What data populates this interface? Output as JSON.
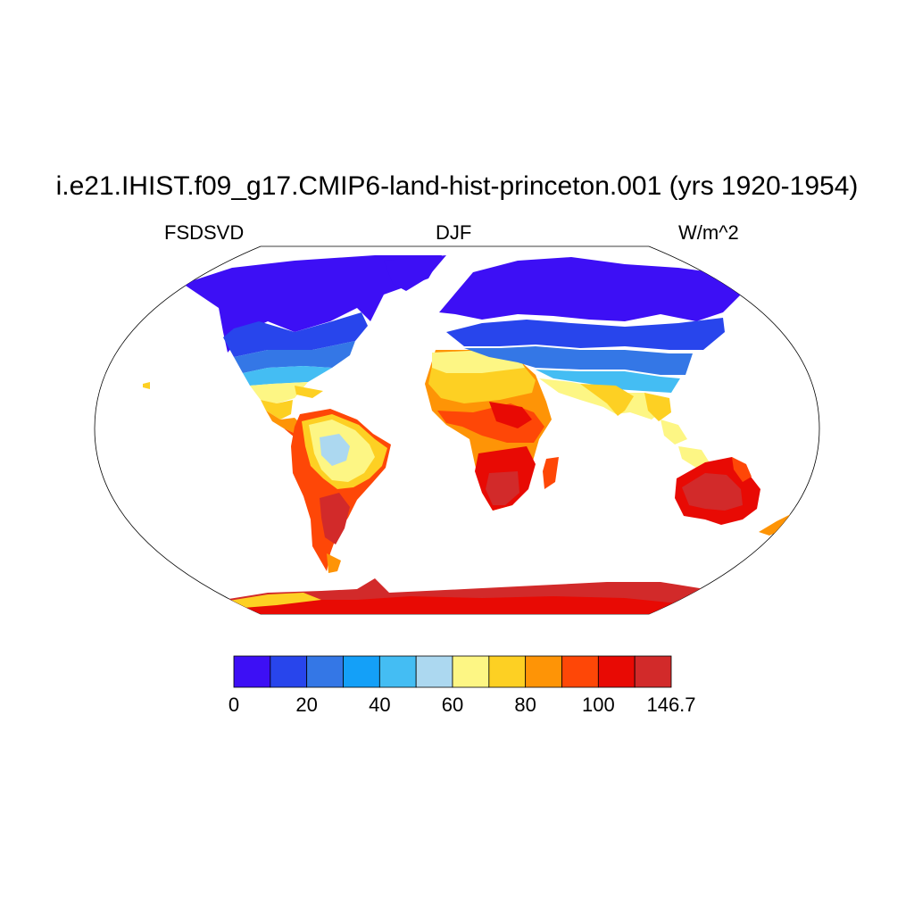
{
  "title": "i.e21.IHIST.f09_g17.CMIP6-land-hist-princeton.001 (yrs 1920-1954)",
  "subtitle_left": "FSDSVD",
  "subtitle_center": "DJF",
  "subtitle_right": "W/m^2",
  "colorbar": {
    "colors": [
      "#3d0ff5",
      "#2845ec",
      "#3477e6",
      "#14a0f8",
      "#44bdf3",
      "#acd8f0",
      "#fdf684",
      "#fdd023",
      "#fe9406",
      "#fe4707",
      "#e80a04",
      "#d22a2a"
    ],
    "labels": [
      "0",
      "20",
      "40",
      "60",
      "80",
      "100",
      "146.7"
    ]
  }
}
